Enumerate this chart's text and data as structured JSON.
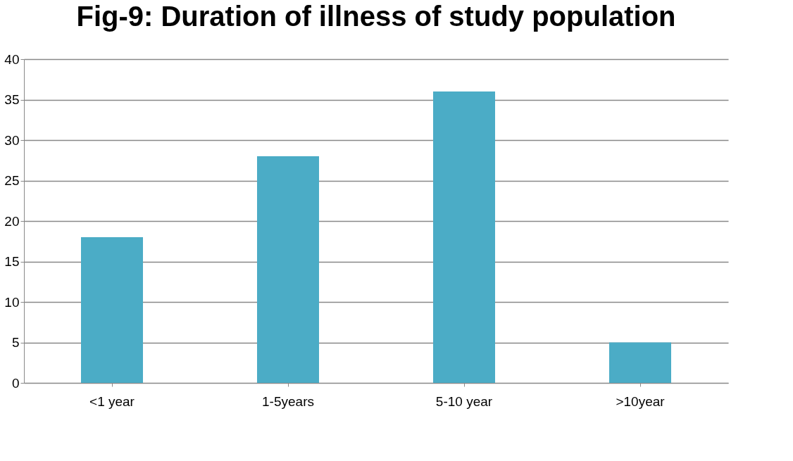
{
  "chart_data": {
    "type": "bar",
    "title": "Fig-9: Duration of illness of study population",
    "categories": [
      "<1 year",
      "1-5years",
      "5-10 year",
      ">10year"
    ],
    "values": [
      18,
      28,
      36,
      5
    ],
    "color": "#4bacc6",
    "ylim": [
      0,
      40
    ],
    "yticks": [
      0,
      5,
      10,
      15,
      20,
      25,
      30,
      35,
      40
    ],
    "grid": true
  }
}
